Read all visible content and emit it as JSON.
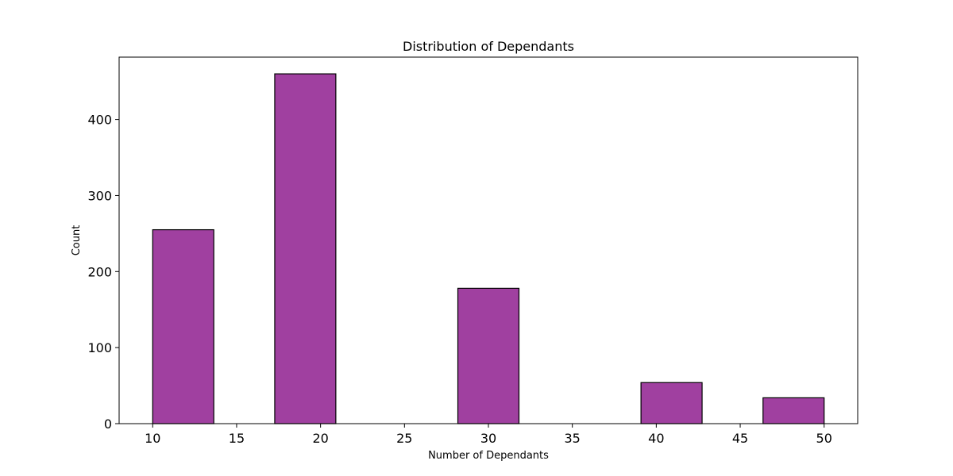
{
  "chart_data": {
    "type": "bar",
    "title": "Distribution of Dependants",
    "xlabel": "Number of Dependants",
    "ylabel": "Count",
    "xlim": [
      8,
      52
    ],
    "ylim": [
      0,
      482
    ],
    "xticks": [
      10,
      15,
      20,
      25,
      30,
      35,
      40,
      45,
      50
    ],
    "yticks": [
      0,
      100,
      200,
      300,
      400
    ],
    "bins": [
      {
        "x0": 10.0,
        "x1": 13.64,
        "count": 255
      },
      {
        "x0": 17.27,
        "x1": 20.91,
        "count": 460
      },
      {
        "x0": 28.18,
        "x1": 31.82,
        "count": 178
      },
      {
        "x0": 39.09,
        "x1": 42.73,
        "count": 54
      },
      {
        "x0": 46.36,
        "x1": 50.0,
        "count": 34
      }
    ],
    "bar_color": "#a040a0",
    "edge_color": "#000000",
    "grid": false,
    "legend": "none"
  }
}
